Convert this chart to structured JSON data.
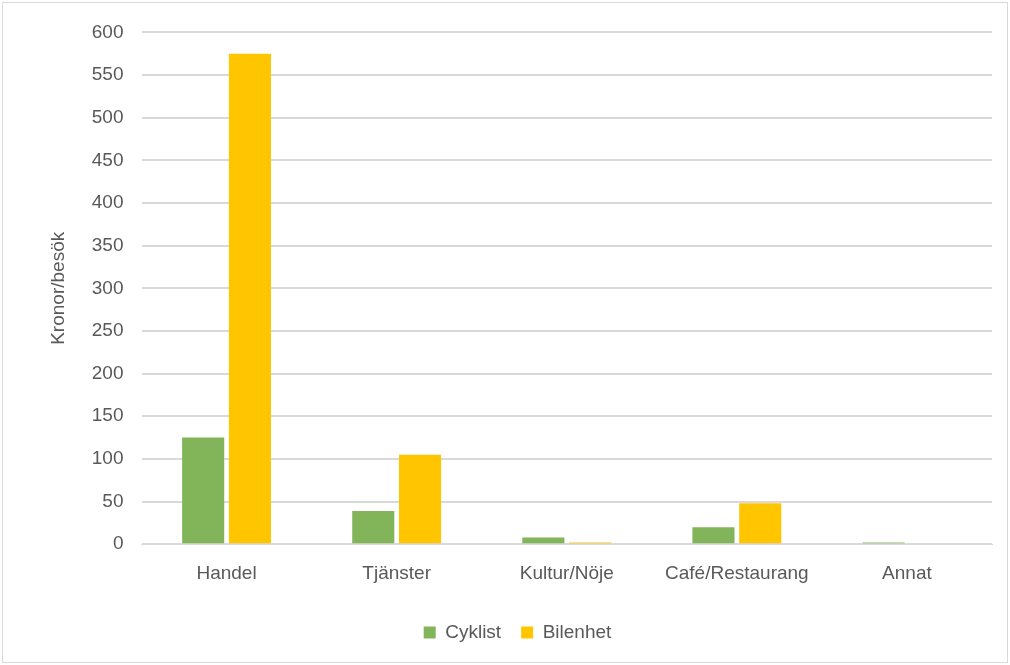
{
  "chart_data": {
    "type": "bar",
    "ylabel": "Kronor/besök",
    "categories": [
      "Handel",
      "Tjänster",
      "Kultur/Nöje",
      "Café/Restaurang",
      "Annat"
    ],
    "series": [
      {
        "name": "Cyklist",
        "color": "#82b55a",
        "values": [
          125,
          39,
          8,
          20,
          2
        ]
      },
      {
        "name": "Bilenhet",
        "color": "#ffc600",
        "values": [
          575,
          105,
          2,
          48,
          0
        ]
      }
    ],
    "ylim": [
      0,
      600
    ],
    "yticks": [
      0,
      50,
      100,
      150,
      200,
      250,
      300,
      350,
      400,
      450,
      500,
      550,
      600
    ],
    "grid": "y",
    "legend": "bottom"
  }
}
